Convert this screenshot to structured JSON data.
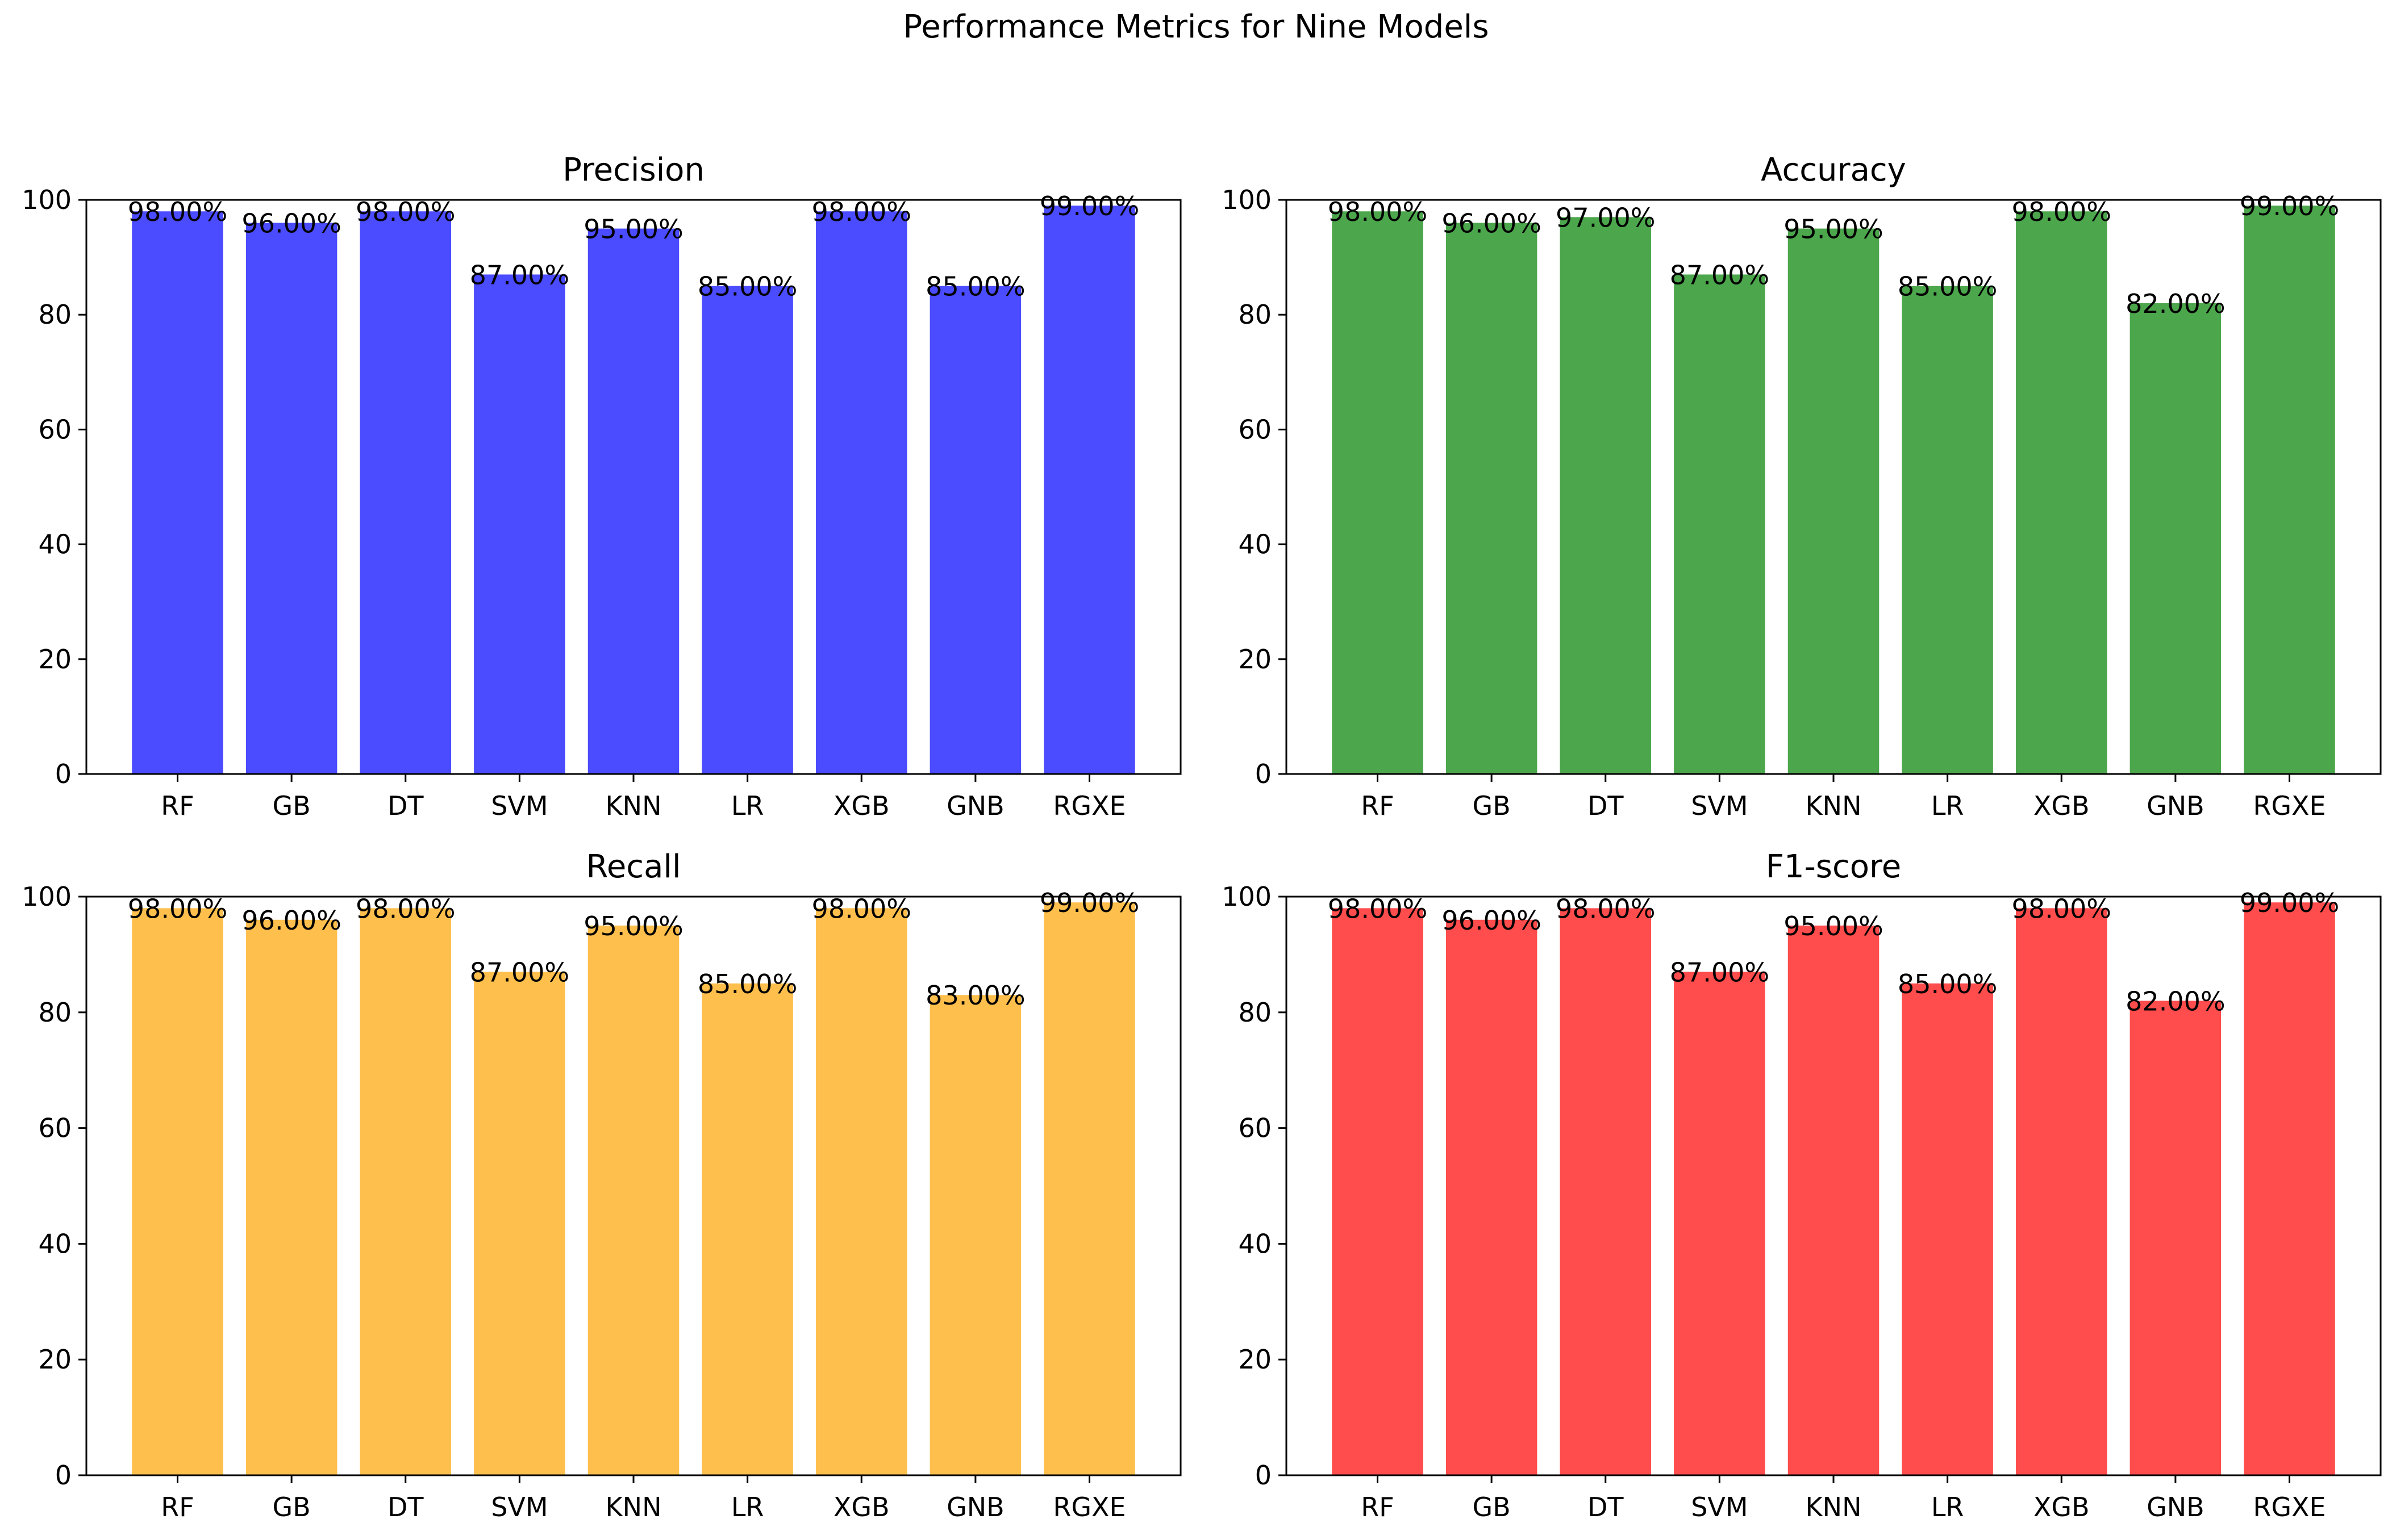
{
  "figure_title": "Performance Metrics for Nine Models",
  "chart_data": [
    {
      "type": "bar",
      "title": "Precision",
      "color": "#4b4bff",
      "categories": [
        "RF",
        "GB",
        "DT",
        "SVM",
        "KNN",
        "LR",
        "XGB",
        "GNB",
        "RGXE"
      ],
      "values": [
        98,
        96,
        98,
        87,
        95,
        85,
        98,
        85,
        99
      ],
      "value_labels": [
        "98.00%",
        "96.00%",
        "98.00%",
        "87.00%",
        "95.00%",
        "85.00%",
        "98.00%",
        "85.00%",
        "99.00%"
      ],
      "ylim": [
        0,
        100
      ],
      "yticks": [
        "0",
        "20",
        "40",
        "60",
        "80",
        "100"
      ],
      "xlabel": "",
      "ylabel": ""
    },
    {
      "type": "bar",
      "title": "Accuracy",
      "color": "#4ca64c",
      "categories": [
        "RF",
        "GB",
        "DT",
        "SVM",
        "KNN",
        "LR",
        "XGB",
        "GNB",
        "RGXE"
      ],
      "values": [
        98,
        96,
        97,
        87,
        95,
        85,
        98,
        82,
        99
      ],
      "value_labels": [
        "98.00%",
        "96.00%",
        "97.00%",
        "87.00%",
        "95.00%",
        "85.00%",
        "98.00%",
        "82.00%",
        "99.00%"
      ],
      "ylim": [
        0,
        100
      ],
      "yticks": [
        "0",
        "20",
        "40",
        "60",
        "80",
        "100"
      ],
      "xlabel": "",
      "ylabel": ""
    },
    {
      "type": "bar",
      "title": "Recall",
      "color": "#ffbf4d",
      "categories": [
        "RF",
        "GB",
        "DT",
        "SVM",
        "KNN",
        "LR",
        "XGB",
        "GNB",
        "RGXE"
      ],
      "values": [
        98,
        96,
        98,
        87,
        95,
        85,
        98,
        83,
        99
      ],
      "value_labels": [
        "98.00%",
        "96.00%",
        "98.00%",
        "87.00%",
        "95.00%",
        "85.00%",
        "98.00%",
        "83.00%",
        "99.00%"
      ],
      "ylim": [
        0,
        100
      ],
      "yticks": [
        "0",
        "20",
        "40",
        "60",
        "80",
        "100"
      ],
      "xlabel": "",
      "ylabel": ""
    },
    {
      "type": "bar",
      "title": "F1-score",
      "color": "#ff4c4c",
      "categories": [
        "RF",
        "GB",
        "DT",
        "SVM",
        "KNN",
        "LR",
        "XGB",
        "GNB",
        "RGXE"
      ],
      "values": [
        98,
        96,
        98,
        87,
        95,
        85,
        98,
        82,
        99
      ],
      "value_labels": [
        "98.00%",
        "96.00%",
        "98.00%",
        "87.00%",
        "95.00%",
        "85.00%",
        "98.00%",
        "82.00%",
        "99.00%"
      ],
      "ylim": [
        0,
        100
      ],
      "yticks": [
        "0",
        "20",
        "40",
        "60",
        "80",
        "100"
      ],
      "xlabel": "",
      "ylabel": ""
    }
  ]
}
